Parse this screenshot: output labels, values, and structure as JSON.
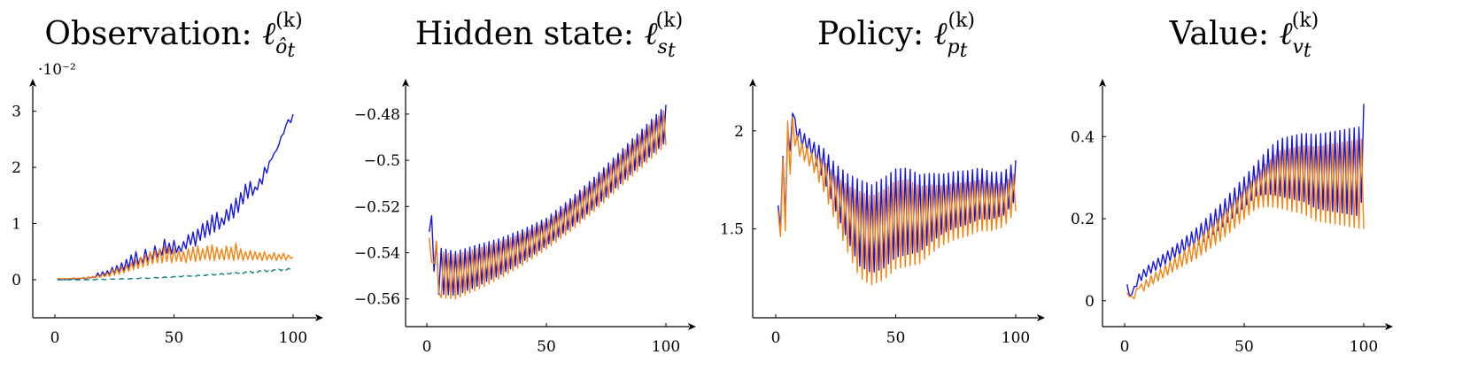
{
  "colors": {
    "series_a": "#1515e6",
    "series_b": "#f5820f",
    "series_c": "#0f7f7f"
  },
  "chart_data": [
    {
      "type": "line",
      "title": {
        "prefix": "Observation: ",
        "symbol": "ℓ",
        "sub": "ô",
        "sub2": "t",
        "sup": "(k)"
      },
      "y_exponent_label": "·10⁻²",
      "xlim": [
        0,
        100
      ],
      "ylim": [
        -0.3,
        3.2
      ],
      "xticks": [
        0,
        50,
        100
      ],
      "xtick_labels": [
        "0",
        "50",
        "100"
      ],
      "yticks": [
        0,
        1,
        2,
        3
      ],
      "ytick_labels": [
        "0",
        "1",
        "2",
        "3"
      ],
      "x_start": 1,
      "x_end": 100,
      "series": [
        {
          "color": "series_a",
          "style": "solid",
          "values": [
            0.02,
            0.01,
            0.01,
            0.0,
            0.01,
            0.02,
            0.01,
            0.02,
            0.01,
            0.02,
            0.02,
            0.03,
            0.02,
            0.04,
            0.03,
            0.05,
            0.04,
            0.12,
            0.05,
            0.14,
            0.07,
            0.16,
            0.09,
            0.22,
            0.1,
            0.25,
            0.13,
            0.3,
            0.16,
            0.36,
            0.2,
            0.44,
            0.24,
            0.5,
            0.27,
            0.4,
            0.3,
            0.54,
            0.33,
            0.48,
            0.36,
            0.6,
            0.4,
            0.55,
            0.44,
            0.72,
            0.47,
            0.65,
            0.46,
            0.7,
            0.48,
            0.6,
            0.5,
            0.68,
            0.55,
            0.8,
            0.62,
            0.85,
            0.6,
            0.9,
            0.7,
            1.0,
            0.75,
            1.05,
            0.8,
            1.15,
            0.85,
            1.2,
            0.9,
            1.1,
            0.98,
            1.25,
            1.05,
            1.35,
            1.1,
            1.45,
            1.2,
            1.55,
            1.35,
            1.7,
            1.45,
            1.75,
            1.5,
            1.65,
            1.6,
            1.8,
            1.7,
            2.0,
            1.9,
            2.1,
            2.15,
            2.25,
            2.3,
            2.4,
            2.55,
            2.6,
            2.75,
            2.85,
            2.8,
            2.95
          ]
        },
        {
          "color": "series_b",
          "style": "solid",
          "values": [
            0.02,
            0.02,
            0.01,
            0.02,
            0.01,
            0.02,
            0.02,
            0.03,
            0.02,
            0.03,
            0.02,
            0.04,
            0.02,
            0.05,
            0.03,
            0.06,
            0.03,
            0.08,
            0.04,
            0.1,
            0.05,
            0.12,
            0.06,
            0.18,
            0.08,
            0.2,
            0.1,
            0.22,
            0.12,
            0.26,
            0.15,
            0.3,
            0.18,
            0.35,
            0.2,
            0.4,
            0.22,
            0.45,
            0.25,
            0.5,
            0.28,
            0.52,
            0.3,
            0.55,
            0.3,
            0.6,
            0.32,
            0.58,
            0.3,
            0.55,
            0.33,
            0.52,
            0.32,
            0.5,
            0.3,
            0.55,
            0.34,
            0.58,
            0.32,
            0.6,
            0.34,
            0.55,
            0.36,
            0.6,
            0.35,
            0.62,
            0.34,
            0.58,
            0.36,
            0.55,
            0.35,
            0.6,
            0.36,
            0.58,
            0.34,
            0.65,
            0.36,
            0.55,
            0.34,
            0.5,
            0.36,
            0.52,
            0.35,
            0.5,
            0.36,
            0.48,
            0.34,
            0.5,
            0.35,
            0.45,
            0.36,
            0.48,
            0.34,
            0.45,
            0.36,
            0.47,
            0.35,
            0.44,
            0.38,
            0.4
          ]
        },
        {
          "color": "series_c",
          "style": "dashed",
          "values": [
            0.0,
            0.0,
            0.0,
            0.0,
            0.0,
            0.0,
            0.0,
            0.0,
            0.0,
            0.0,
            0.0,
            0.0,
            0.0,
            0.0,
            0.0,
            0.0,
            0.0,
            0.01,
            0.0,
            0.01,
            0.0,
            0.01,
            0.01,
            0.01,
            0.01,
            0.01,
            0.01,
            0.02,
            0.01,
            0.02,
            0.01,
            0.02,
            0.02,
            0.02,
            0.02,
            0.03,
            0.02,
            0.03,
            0.02,
            0.03,
            0.03,
            0.04,
            0.03,
            0.04,
            0.03,
            0.05,
            0.04,
            0.05,
            0.04,
            0.06,
            0.04,
            0.06,
            0.05,
            0.07,
            0.05,
            0.07,
            0.06,
            0.08,
            0.06,
            0.08,
            0.07,
            0.09,
            0.07,
            0.09,
            0.08,
            0.1,
            0.08,
            0.11,
            0.09,
            0.11,
            0.09,
            0.12,
            0.1,
            0.12,
            0.1,
            0.13,
            0.11,
            0.14,
            0.11,
            0.14,
            0.12,
            0.15,
            0.12,
            0.16,
            0.13,
            0.16,
            0.14,
            0.17,
            0.14,
            0.18,
            0.15,
            0.18,
            0.16,
            0.19,
            0.16,
            0.2,
            0.17,
            0.2,
            0.18,
            0.21
          ]
        }
      ]
    },
    {
      "type": "line",
      "title": {
        "prefix": "Hidden state: ",
        "symbol": "ℓ",
        "sub": "s",
        "sub2": "t",
        "sup": "(k)"
      },
      "y_exponent_label": "",
      "xlim": [
        0,
        100
      ],
      "ylim": [
        -0.567,
        -0.472
      ],
      "xticks": [
        0,
        50,
        100
      ],
      "xtick_labels": [
        "0",
        "50",
        "100"
      ],
      "yticks": [
        -0.56,
        -0.54,
        -0.52,
        -0.5,
        -0.48
      ],
      "ytick_labels": [
        "−0.56",
        "−0.54",
        "−0.52",
        "−0.5",
        "−0.48"
      ],
      "x_start": 1,
      "x_end": 100,
      "osc": {
        "anchors": [
          [
            1,
            -0.532
          ],
          [
            3,
            -0.548
          ],
          [
            6,
            -0.548
          ],
          [
            12,
            -0.549
          ],
          [
            20,
            -0.546
          ],
          [
            30,
            -0.542
          ],
          [
            40,
            -0.537
          ],
          [
            50,
            -0.531
          ],
          [
            60,
            -0.523
          ],
          [
            70,
            -0.514
          ],
          [
            80,
            -0.504
          ],
          [
            90,
            -0.494
          ],
          [
            100,
            -0.484
          ]
        ],
        "amp_anchors": [
          [
            1,
            0.0
          ],
          [
            5,
            0.01
          ],
          [
            20,
            0.009
          ],
          [
            50,
            0.006
          ],
          [
            80,
            0.007
          ],
          [
            100,
            0.008
          ]
        ],
        "series": [
          {
            "color": "series_a",
            "shift": 0.0,
            "phase": 0,
            "override": [
              [
                1,
                -0.531
              ],
              [
                2,
                -0.524
              ],
              [
                3,
                -0.548
              ],
              [
                4,
                -0.535
              ]
            ]
          },
          {
            "color": "series_b",
            "shift": -0.0015,
            "phase": 1,
            "override": [
              [
                4,
                -0.535
              ],
              [
                5,
                -0.557
              ]
            ]
          }
        ]
      }
    },
    {
      "type": "line",
      "title": {
        "prefix": "Policy: ",
        "symbol": "ℓ",
        "sub": "p",
        "sub2": "t",
        "sup": "(k)"
      },
      "y_exponent_label": "",
      "xlim": [
        0,
        100
      ],
      "ylim": [
        1.06,
        2.18
      ],
      "xticks": [
        0,
        50,
        100
      ],
      "xtick_labels": [
        "0",
        "50",
        "100"
      ],
      "yticks": [
        1.5,
        2
      ],
      "ytick_labels": [
        "1.5",
        "2"
      ],
      "x_start": 1,
      "x_end": 100,
      "osc": {
        "anchors": [
          [
            1,
            1.62
          ],
          [
            2,
            1.5
          ],
          [
            3,
            1.87
          ],
          [
            4,
            1.55
          ],
          [
            5,
            2.0
          ],
          [
            7,
            2.02
          ],
          [
            10,
            1.94
          ],
          [
            15,
            1.88
          ],
          [
            20,
            1.8
          ],
          [
            25,
            1.68
          ],
          [
            30,
            1.58
          ],
          [
            35,
            1.5
          ],
          [
            40,
            1.47
          ],
          [
            45,
            1.5
          ],
          [
            50,
            1.55
          ],
          [
            55,
            1.56
          ],
          [
            60,
            1.55
          ],
          [
            65,
            1.58
          ],
          [
            70,
            1.6
          ],
          [
            75,
            1.62
          ],
          [
            80,
            1.63
          ],
          [
            85,
            1.65
          ],
          [
            90,
            1.64
          ],
          [
            95,
            1.65
          ],
          [
            100,
            1.72
          ]
        ],
        "amp_anchors": [
          [
            1,
            0.0
          ],
          [
            5,
            0.04
          ],
          [
            15,
            0.04
          ],
          [
            25,
            0.12
          ],
          [
            35,
            0.22
          ],
          [
            45,
            0.23
          ],
          [
            55,
            0.22
          ],
          [
            70,
            0.15
          ],
          [
            85,
            0.13
          ],
          [
            100,
            0.1
          ]
        ],
        "series": [
          {
            "color": "series_a",
            "shift": 0.03,
            "phase": 0,
            "override": [
              [
                1,
                1.62
              ],
              [
                2,
                1.5
              ],
              [
                3,
                1.87
              ],
              [
                4,
                1.55
              ],
              [
                5,
                2.0
              ],
              [
                6,
                1.9
              ],
              [
                7,
                2.09
              ]
            ]
          },
          {
            "color": "series_b",
            "shift": -0.03,
            "phase": 1,
            "override": [
              [
                5,
                2.05
              ],
              [
                6,
                1.78
              ],
              [
                7,
                2.07
              ]
            ]
          }
        ]
      }
    },
    {
      "type": "line",
      "title": {
        "prefix": "Value: ",
        "symbol": "ℓ",
        "sub": "v",
        "sub2": "t",
        "sup": "(k)"
      },
      "y_exponent_label": "",
      "xlim": [
        0,
        100
      ],
      "ylim": [
        -0.035,
        0.5
      ],
      "xticks": [
        0,
        50,
        100
      ],
      "xtick_labels": [
        "0",
        "50",
        "100"
      ],
      "yticks": [
        0,
        0.2,
        0.4
      ],
      "ytick_labels": [
        "0",
        "0.2",
        "0.4"
      ],
      "x_start": 1,
      "x_end": 100,
      "osc": {
        "anchors": [
          [
            1,
            0.035
          ],
          [
            3,
            0.02
          ],
          [
            5,
            0.035
          ],
          [
            10,
            0.06
          ],
          [
            20,
            0.1
          ],
          [
            30,
            0.14
          ],
          [
            40,
            0.19
          ],
          [
            50,
            0.25
          ],
          [
            55,
            0.28
          ],
          [
            60,
            0.3
          ],
          [
            65,
            0.31
          ],
          [
            70,
            0.31
          ],
          [
            75,
            0.31
          ],
          [
            80,
            0.3
          ],
          [
            85,
            0.3
          ],
          [
            90,
            0.3
          ],
          [
            95,
            0.3
          ],
          [
            100,
            0.3
          ]
        ],
        "amp_anchors": [
          [
            1,
            0.0
          ],
          [
            5,
            0.01
          ],
          [
            20,
            0.015
          ],
          [
            40,
            0.03
          ],
          [
            55,
            0.04
          ],
          [
            65,
            0.07
          ],
          [
            80,
            0.09
          ],
          [
            100,
            0.11
          ]
        ],
        "series": [
          {
            "color": "series_a",
            "shift": 0.015,
            "phase": 0,
            "override": [
              [
                1,
                0.04
              ],
              [
                2,
                0.012
              ],
              [
                3,
                0.015
              ],
              [
                4,
                0.035
              ],
              [
                5,
                0.035
              ],
              [
                99,
                0.24
              ],
              [
                100,
                0.48
              ]
            ]
          },
          {
            "color": "series_b",
            "shift": -0.015,
            "phase": 1,
            "override": [
              [
                6,
                0.03
              ]
            ]
          }
        ]
      }
    }
  ]
}
